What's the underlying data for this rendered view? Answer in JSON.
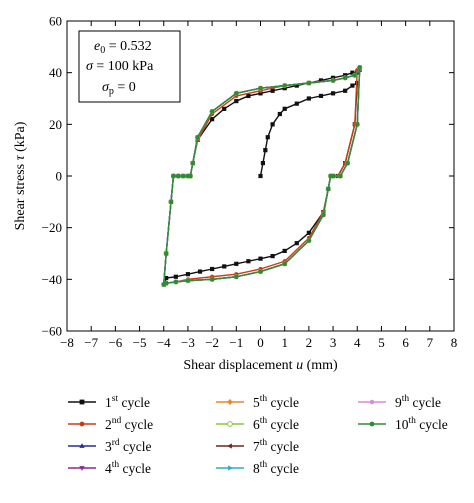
{
  "chart_data": {
    "type": "line",
    "xlabel_prefix": "Shear displacement ",
    "xlabel_var": "u",
    "xlabel_suffix": " (mm)",
    "ylabel_prefix": "Shear stress ",
    "ylabel_var": "τ",
    "ylabel_suffix": " (kPa)",
    "xlim": [
      -8,
      8
    ],
    "ylim": [
      -60,
      60
    ],
    "xticks": [
      -8,
      -7,
      -6,
      -5,
      -4,
      -3,
      -2,
      -1,
      0,
      1,
      2,
      3,
      4,
      5,
      6,
      7,
      8
    ],
    "yticks": [
      -60,
      -40,
      -20,
      0,
      20,
      40,
      60
    ],
    "xtick_labels": [
      "−8",
      "−7",
      "−6",
      "−5",
      "−4",
      "−3",
      "−2",
      "−1",
      "0",
      "1",
      "2",
      "3",
      "4",
      "5",
      "6",
      "7",
      "8"
    ],
    "ytick_labels": [
      "−60",
      "−40",
      "−20",
      "0",
      "20",
      "40",
      "60"
    ],
    "grid": false,
    "legend_position": "bottom",
    "annotation": {
      "line1_var": "e",
      "line1_sub": "0",
      "line1_rest": " = 0.532",
      "line2_var": "σ",
      "line2_rest": " = 100 kPa",
      "line3_var": "σ",
      "line3_sub": "p",
      "line3_rest": " = 0"
    },
    "series": [
      {
        "name_num": "1",
        "name_sup": "st",
        "name_rest": " cycle",
        "color": "#111111",
        "marker": "square",
        "x": [
          0,
          0.1,
          0.2,
          0.3,
          0.5,
          0.8,
          1.0,
          1.5,
          2.0,
          2.5,
          3.0,
          3.5,
          3.8,
          4.0,
          3.9,
          3.5,
          3.2,
          3.0,
          2.9,
          2.8,
          2.6,
          2.0,
          1.5,
          1.0,
          0.5,
          0,
          -0.5,
          -1.0,
          -1.5,
          -2.0,
          -2.5,
          -3.0,
          -3.5,
          -3.9,
          -4.0,
          -3.9,
          -3.7,
          -3.6,
          -3.4,
          -3.2,
          -3.0,
          -2.9,
          -2.8,
          -2.6,
          -2.0,
          -1.5,
          -1.0,
          -0.5,
          0,
          0.5,
          1.0,
          1.5,
          2.0,
          2.5,
          3.0,
          3.5,
          3.8,
          4.0
        ],
        "y": [
          0,
          5,
          10,
          15,
          20,
          24,
          26,
          28,
          30,
          31,
          32,
          33,
          35,
          36,
          20,
          5,
          0,
          0,
          0,
          -5,
          -14,
          -22,
          -26,
          -29,
          -31,
          -32,
          -33,
          -34,
          -35,
          -36,
          -37,
          -38,
          -39,
          -39.5,
          -42,
          -30,
          -10,
          0,
          0,
          0,
          0,
          0,
          5,
          14,
          22,
          26,
          29,
          31,
          32,
          33,
          34,
          35,
          36,
          37,
          38,
          39,
          40,
          40
        ]
      },
      {
        "name_num": "2",
        "name_sup": "nd",
        "name_rest": " cycle",
        "color": "#d03a10",
        "marker": "circle",
        "x": [
          4.0,
          3.9,
          3.5,
          3.2,
          3.0,
          2.9,
          2.8,
          2.6,
          2.0,
          1.0,
          0,
          -1.0,
          -2.0,
          -3.0,
          -3.5,
          -3.9,
          -4.0,
          -3.9,
          -3.7,
          -3.6,
          -3.4,
          -3.2,
          -3.0,
          -2.9,
          -2.8,
          -2.6,
          -2.0,
          -1.0,
          0,
          1.0,
          2.0,
          3.0,
          3.5,
          3.9,
          4.1
        ],
        "y": [
          41,
          20,
          5,
          0,
          0,
          0,
          -5,
          -14,
          -24,
          -33,
          -36,
          -38,
          -39,
          -40,
          -41,
          -41.5,
          -42,
          -30,
          -10,
          0,
          0,
          0,
          0,
          0,
          5,
          14,
          24,
          31,
          33,
          35,
          36,
          37,
          38,
          39,
          41
        ]
      },
      {
        "name_num": "3",
        "name_sup": "rd",
        "name_rest": " cycle",
        "color": "#2a2a9a",
        "marker": "triangle",
        "x": [
          4.1,
          4.0,
          3.6,
          3.3,
          3.0,
          2.9,
          2.8,
          2.6,
          2.0,
          1.0,
          0,
          -1.0,
          -2.0,
          -3.0,
          -3.5,
          -3.9,
          -4.0,
          -3.9,
          -3.7,
          -3.6,
          -3.4,
          -3.2,
          -3.0,
          -2.9,
          -2.8,
          -2.6,
          -2.0,
          -1.0,
          0,
          1.0,
          2.0,
          3.0,
          3.5,
          3.9,
          4.1
        ],
        "y": [
          41,
          20,
          5,
          0,
          0,
          0,
          -5,
          -15,
          -25,
          -34,
          -37,
          -39,
          -40,
          -40.5,
          -41,
          -41.5,
          -42,
          -30,
          -10,
          0,
          0,
          0,
          0,
          0,
          5,
          15,
          25,
          32,
          34,
          35,
          36,
          37,
          38,
          39,
          41
        ]
      },
      {
        "name_num": "4",
        "name_sup": "th",
        "name_rest": " cycle",
        "color": "#8a2a8a",
        "marker": "triangle-down",
        "x": [
          4.1,
          4.0,
          3.6,
          3.3,
          3.0,
          2.9,
          2.8,
          2.6,
          2.0,
          1.0,
          0,
          -1.0,
          -2.0,
          -3.0,
          -3.5,
          -3.9,
          -4.0,
          -3.9,
          -3.7,
          -3.6,
          -3.4,
          -3.2,
          -3.0,
          -2.9,
          -2.8,
          -2.6,
          -2.0,
          -1.0,
          0,
          1.0,
          2.0,
          3.0,
          3.5,
          3.9,
          4.1
        ],
        "y": [
          41.5,
          20,
          5,
          0,
          0,
          0,
          -5,
          -15,
          -25,
          -34,
          -37,
          -39,
          -40,
          -40.5,
          -41,
          -41.5,
          -42,
          -30,
          -10,
          0,
          0,
          0,
          0,
          0,
          5,
          15,
          25,
          32,
          34,
          35,
          36,
          37,
          38,
          39,
          41.5
        ]
      },
      {
        "name_num": "5",
        "name_sup": "th",
        "name_rest": " cycle",
        "color": "#e8862a",
        "marker": "diamond",
        "x": [
          4.1,
          4.0,
          3.6,
          3.3,
          3.0,
          2.9,
          2.8,
          2.6,
          2.0,
          1.0,
          0,
          -1.0,
          -2.0,
          -3.0,
          -3.5,
          -3.9,
          -4.0,
          -3.9,
          -3.7,
          -3.6,
          -3.4,
          -3.2,
          -3.0,
          -2.9,
          -2.8,
          -2.6,
          -2.0,
          -1.0,
          0,
          1.0,
          2.0,
          3.0,
          3.5,
          3.9,
          4.1
        ],
        "y": [
          41.5,
          20,
          5,
          0,
          0,
          0,
          -5,
          -15,
          -25,
          -34,
          -37,
          -39,
          -40,
          -40.5,
          -41,
          -41.5,
          -42,
          -30,
          -10,
          0,
          0,
          0,
          0,
          0,
          5,
          15,
          25,
          32,
          34,
          35,
          36,
          37,
          38,
          39,
          41.5
        ]
      },
      {
        "name_num": "6",
        "name_sup": "th",
        "name_rest": " cycle",
        "color": "#8cc63f",
        "marker": "circle-open",
        "x": [
          4.1,
          4.0,
          3.6,
          3.3,
          3.0,
          2.9,
          2.8,
          2.6,
          2.0,
          1.0,
          0,
          -1.0,
          -2.0,
          -3.0,
          -3.5,
          -3.9,
          -4.0,
          -3.9,
          -3.7,
          -3.6,
          -3.4,
          -3.2,
          -3.0,
          -2.9,
          -2.8,
          -2.6,
          -2.0,
          -1.0,
          0,
          1.0,
          2.0,
          3.0,
          3.5,
          3.9,
          4.1
        ],
        "y": [
          42,
          20,
          5,
          0,
          0,
          0,
          -5,
          -15,
          -25,
          -34,
          -37,
          -39,
          -40,
          -40.5,
          -41,
          -41.5,
          -42,
          -30,
          -10,
          0,
          0,
          0,
          0,
          0,
          5,
          15,
          25,
          32,
          34,
          35,
          36,
          37,
          38,
          39,
          42
        ]
      },
      {
        "name_num": "7",
        "name_sup": "th",
        "name_rest": " cycle",
        "color": "#6b2a1a",
        "marker": "triangle-left",
        "x": [
          4.1,
          4.0,
          3.6,
          3.3,
          3.0,
          2.9,
          2.8,
          2.6,
          2.0,
          1.0,
          0,
          -1.0,
          -2.0,
          -3.0,
          -3.5,
          -3.9,
          -4.0,
          -3.9,
          -3.7,
          -3.6,
          -3.4,
          -3.2,
          -3.0,
          -2.9,
          -2.8,
          -2.6,
          -2.0,
          -1.0,
          0,
          1.0,
          2.0,
          3.0,
          3.5,
          3.9,
          4.1
        ],
        "y": [
          42,
          20,
          5,
          0,
          0,
          0,
          -5,
          -15,
          -25,
          -34,
          -37,
          -39,
          -40,
          -40.5,
          -41,
          -41.5,
          -42,
          -30,
          -10,
          0,
          0,
          0,
          0,
          0,
          5,
          15,
          25,
          32,
          34,
          35,
          36,
          37,
          38,
          39,
          42
        ]
      },
      {
        "name_num": "8",
        "name_sup": "th",
        "name_rest": " cycle",
        "color": "#2ab0b8",
        "marker": "triangle-right",
        "x": [
          4.1,
          4.0,
          3.6,
          3.3,
          3.0,
          2.9,
          2.8,
          2.6,
          2.0,
          1.0,
          0,
          -1.0,
          -2.0,
          -3.0,
          -3.5,
          -3.9,
          -4.0,
          -3.9,
          -3.7,
          -3.6,
          -3.4,
          -3.2,
          -3.0,
          -2.9,
          -2.8,
          -2.6,
          -2.0,
          -1.0,
          0,
          1.0,
          2.0,
          3.0,
          3.5,
          3.9,
          4.1
        ],
        "y": [
          42,
          20,
          5,
          0,
          0,
          0,
          -5,
          -15,
          -25,
          -34,
          -37,
          -39,
          -40,
          -40.5,
          -41,
          -41.5,
          -42,
          -30,
          -10,
          0,
          0,
          0,
          0,
          0,
          5,
          15,
          25,
          32,
          34,
          35,
          36,
          37,
          38,
          39,
          42
        ]
      },
      {
        "name_num": "9",
        "name_sup": "th",
        "name_rest": " cycle",
        "color": "#d98ad8",
        "marker": "hexagon",
        "x": [
          4.1,
          4.0,
          3.6,
          3.3,
          3.0,
          2.9,
          2.8,
          2.6,
          2.0,
          1.0,
          0,
          -1.0,
          -2.0,
          -3.0,
          -3.5,
          -3.9,
          -4.0,
          -3.9,
          -3.7,
          -3.6,
          -3.4,
          -3.2,
          -3.0,
          -2.9,
          -2.8,
          -2.6,
          -2.0,
          -1.0,
          0,
          1.0,
          2.0,
          3.0,
          3.5,
          3.9,
          4.1
        ],
        "y": [
          42,
          20,
          5,
          0,
          0,
          0,
          -5,
          -15,
          -25,
          -34,
          -37,
          -39,
          -40,
          -40.5,
          -41,
          -41.5,
          -42,
          -30,
          -10,
          0,
          0,
          0,
          0,
          0,
          5,
          15,
          25,
          32,
          34,
          35,
          36,
          37,
          38,
          39,
          42
        ]
      },
      {
        "name_num": "10",
        "name_sup": "th",
        "name_rest": " cycle",
        "color": "#2e8b3a",
        "marker": "circle",
        "x": [
          4.1,
          4.0,
          3.6,
          3.3,
          3.0,
          2.9,
          2.8,
          2.6,
          2.0,
          1.0,
          0,
          -1.0,
          -2.0,
          -3.0,
          -3.5,
          -3.9,
          -4.0,
          -3.9,
          -3.7,
          -3.6,
          -3.4,
          -3.2,
          -3.0,
          -2.9,
          -2.8,
          -2.6,
          -2.0,
          -1.0,
          0,
          1.0,
          2.0,
          3.0,
          3.5,
          3.9,
          4.1
        ],
        "y": [
          42,
          20,
          5,
          0,
          0,
          0,
          -5,
          -15,
          -25,
          -34,
          -37,
          -39,
          -40,
          -40.5,
          -41,
          -41.5,
          -42,
          -30,
          -10,
          0,
          0,
          0,
          0,
          0,
          5,
          15,
          25,
          32,
          34,
          35,
          36,
          37,
          38,
          39,
          42
        ]
      }
    ]
  }
}
